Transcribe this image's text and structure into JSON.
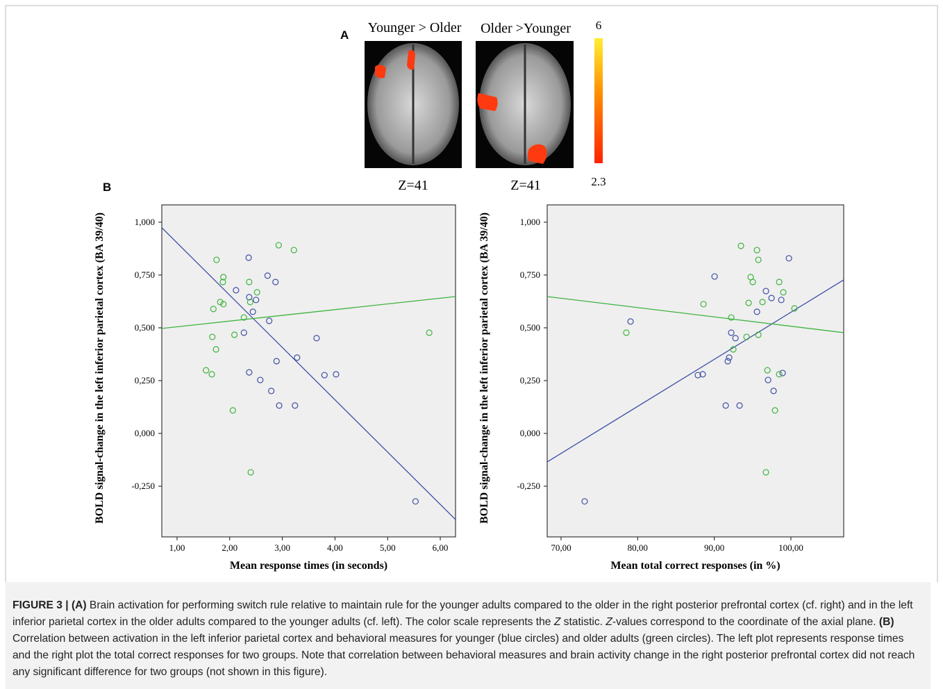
{
  "panel_a": {
    "label": "A",
    "images": [
      {
        "title": "Younger > Older",
        "slice": "Z=41"
      },
      {
        "title": "Older >Younger",
        "slice": "Z=41"
      }
    ],
    "colorbar": {
      "max": "6",
      "min": "2.3"
    }
  },
  "panel_b": {
    "label": "B"
  },
  "chart_data": [
    {
      "type": "scatter",
      "xlabel": "Mean response times (in seconds)",
      "ylabel": "BOLD signal-change in the left inferior parietal cortex (BA 39/40)",
      "xlim": [
        0.71,
        6.29
      ],
      "ylim": [
        -0.49,
        1.082
      ],
      "xticks": [
        {
          "value": 1,
          "label": "1,00"
        },
        {
          "value": 2,
          "label": "2,00"
        },
        {
          "value": 3,
          "label": "3,00"
        },
        {
          "value": 4,
          "label": "4,00"
        },
        {
          "value": 5,
          "label": "5,00"
        },
        {
          "value": 6,
          "label": "6,00"
        }
      ],
      "yticks": [
        {
          "value": -0.25,
          "label": "-0,250"
        },
        {
          "value": 0,
          "label": "0,000"
        },
        {
          "value": 0.25,
          "label": "0,250"
        },
        {
          "value": 0.5,
          "label": "0,500"
        },
        {
          "value": 0.75,
          "label": "0,750"
        },
        {
          "value": 1,
          "label": "1,000"
        }
      ],
      "series": [
        {
          "color": "#3f4fa6",
          "x": [
            2.36,
            2.12,
            2.72,
            2.87,
            2.37,
            2.5,
            2.44,
            2.27,
            2.75,
            3.65,
            2.89,
            3.28,
            2.37,
            2.58,
            3.8,
            4.02,
            2.79,
            2.94,
            3.24,
            5.53
          ],
          "values": [
            0.832,
            0.678,
            0.747,
            0.717,
            0.645,
            0.632,
            0.576,
            0.477,
            0.533,
            0.451,
            0.342,
            0.359,
            0.289,
            0.253,
            0.276,
            0.28,
            0.201,
            0.132,
            0.132,
            -0.322
          ],
          "fit_x": [
            0.71,
            6.29
          ],
          "fit_y": [
            0.974,
            -0.408
          ]
        },
        {
          "color": "#3db33d",
          "x": [
            1.75,
            1.88,
            1.87,
            2.93,
            3.22,
            2.37,
            2.52,
            1.82,
            1.88,
            2.39,
            1.69,
            2.27,
            2.09,
            1.67,
            1.74,
            1.55,
            1.66,
            2.06,
            2.4,
            5.79
          ],
          "values": [
            0.822,
            0.74,
            0.717,
            0.891,
            0.868,
            0.717,
            0.668,
            0.622,
            0.612,
            0.622,
            0.589,
            0.549,
            0.467,
            0.457,
            0.398,
            0.299,
            0.28,
            0.109,
            -0.184,
            0.477
          ],
          "fit_x": [
            0.71,
            6.29
          ],
          "fit_y": [
            0.497,
            0.648
          ]
        }
      ]
    },
    {
      "type": "scatter",
      "xlabel": "Mean total correct responses (in %)",
      "ylabel": "BOLD signal-change in the left inferior parietal cortex (BA 39/40)",
      "xlim": [
        68.19,
        106.89
      ],
      "ylim": [
        -0.49,
        1.082
      ],
      "xticks": [
        {
          "value": 70,
          "label": "70,00"
        },
        {
          "value": 80,
          "label": "80,00"
        },
        {
          "value": 90,
          "label": "90,00"
        },
        {
          "value": 100,
          "label": "100,00"
        }
      ],
      "yticks": [
        {
          "value": -0.25,
          "label": "-0,250"
        },
        {
          "value": 0,
          "label": "0,000"
        },
        {
          "value": 0.25,
          "label": "0,250"
        },
        {
          "value": 0.5,
          "label": "0,500"
        },
        {
          "value": 0.75,
          "label": "0,750"
        },
        {
          "value": 1,
          "label": "1,000"
        }
      ],
      "series": [
        {
          "color": "#3f4fa6",
          "x": [
            99.74,
            90.04,
            96.74,
            97.47,
            98.74,
            95.57,
            79.07,
            92.21,
            92.76,
            91.94,
            91.76,
            87.86,
            88.49,
            98.92,
            97.02,
            97.74,
            91.49,
            93.3,
            73.08
          ],
          "values": [
            0.829,
            0.743,
            0.674,
            0.641,
            0.632,
            0.576,
            0.53,
            0.477,
            0.451,
            0.359,
            0.342,
            0.276,
            0.28,
            0.286,
            0.253,
            0.201,
            0.132,
            0.132,
            -0.322
          ],
          "fit_x": [
            68.19,
            106.89
          ],
          "fit_y": [
            -0.135,
            0.727
          ]
        },
        {
          "color": "#3db33d",
          "x": [
            93.48,
            95.57,
            95.75,
            94.75,
            95.02,
            98.47,
            99.01,
            94.48,
            96.29,
            88.59,
            100.46,
            92.21,
            94.21,
            95.75,
            78.52,
            92.48,
            96.93,
            98.47,
            97.92,
            96.74
          ],
          "values": [
            0.888,
            0.868,
            0.822,
            0.74,
            0.717,
            0.717,
            0.668,
            0.618,
            0.622,
            0.612,
            0.592,
            0.549,
            0.457,
            0.467,
            0.477,
            0.398,
            0.299,
            0.28,
            0.109,
            -0.184
          ],
          "fit_x": [
            68.19,
            106.89
          ],
          "fit_y": [
            0.648,
            0.477
          ]
        }
      ]
    }
  ],
  "caption": [
    "FIGURE 3 | (A)",
    " Brain activation for performing switch rule relative to maintain rule for the younger adults compared to the older in the right posterior prefrontal cortex (cf. right) and in the left inferior parietal cortex in the older adults compared to the younger adults (cf. left). The color scale represents the ",
    "Z",
    " statistic. ",
    "Z",
    "-values correspond to the coordinate of the axial plane. ",
    "(B)",
    " Correlation between activation in the left inferior parietal cortex and behavioral measures for younger (blue circles) and older adults (green circles). The left plot represents response times and the right plot the total correct responses for two groups. Note that correlation between behavioral measures and brain activity change in the right posterior prefrontal cortex did not reach any significant difference for two groups (not shown in this figure)."
  ]
}
